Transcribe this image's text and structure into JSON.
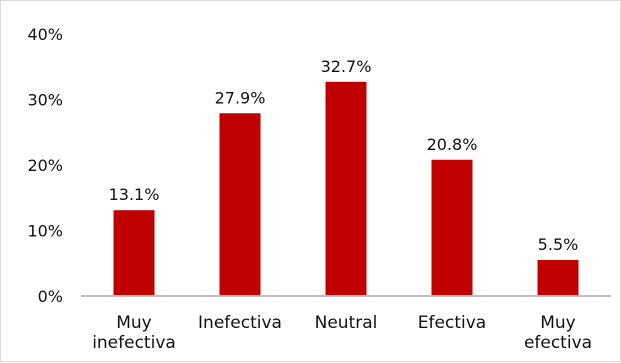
{
  "chart_data": {
    "type": "bar",
    "categories": [
      [
        "Muy",
        "inefectiva"
      ],
      [
        "Inefectiva"
      ],
      [
        "Neutral"
      ],
      [
        "Efectiva"
      ],
      [
        "Muy",
        "efectiva"
      ]
    ],
    "values": [
      13.1,
      27.9,
      32.7,
      20.8,
      5.5
    ],
    "data_labels": [
      "13.1%",
      "27.9%",
      "32.7%",
      "20.8%",
      "5.5%"
    ],
    "yticks": [
      "0%",
      "10%",
      "20%",
      "30%",
      "40%"
    ],
    "ylim": [
      0,
      40
    ],
    "grid": false,
    "bar_color": "#c00000",
    "axis_color": "#bfbfbf",
    "title": "",
    "xlabel": "",
    "ylabel": ""
  }
}
